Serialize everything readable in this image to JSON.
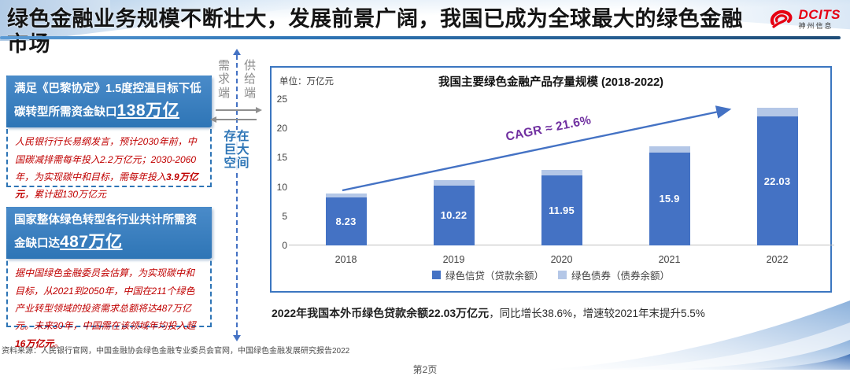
{
  "colors": {
    "accent_blue": "#2E75B6",
    "bar_credit_blue": "#4472C4",
    "bar_bond_lightblue": "#B4C7E7",
    "cagr_purple": "#7030A0",
    "body_text_red": "#C00000"
  },
  "header": {
    "title": "绿色金融业务规模不断壮大，发展前景广阔，我国已成为全球最大的绿色金融市场",
    "logo_brand": "DCITS",
    "logo_sub": "神州信息"
  },
  "left_panels": [
    {
      "headline_pre": "满足《巴黎协定》1.5度控温目标下低碳转型所需资金缺口",
      "headline_value": "138万亿",
      "body_pre": "人民银行行长易纲发言，预计2030年前，中国碳减排需每年投入2.2万亿元；2030-2060年，为实现碳中和目标，需每年投入",
      "body_bold": "3.9万亿元",
      "body_post": "，累计超130万亿元"
    },
    {
      "headline_pre": "国家整体绿色转型各行业共计所需资金缺口达",
      "headline_value": "487万亿",
      "body_pre": "据中国绿色金融委员会估算，为实现碳中和目标，从2021到2050年，中国在211个绿色产业转型领域的投资需求总额将达487万亿元。未来30年，中国需在该领域年均投入超",
      "body_bold": "16万亿元",
      "body_post": "。"
    }
  ],
  "divider": {
    "demand_label": "需求端",
    "supply_label": "供给端",
    "gap_rows": [
      "存在",
      "巨大",
      "空间"
    ]
  },
  "chart_data": {
    "type": "bar",
    "stacked": true,
    "title": "我国主要绿色金融产品存量规模 (2018-2022)",
    "unit_label": "单位：万亿元",
    "categories": [
      "2018",
      "2019",
      "2020",
      "2021",
      "2022"
    ],
    "series": [
      {
        "name": "绿色信贷（贷款余额）",
        "color": "#4472C4",
        "values": [
          8.23,
          10.22,
          11.95,
          15.9,
          22.03
        ],
        "labels": [
          "8.23",
          "10.22",
          "11.95",
          "15.9",
          "22.03"
        ]
      },
      {
        "name": "绿色债券（债券余额）",
        "color": "#B4C7E7",
        "values": [
          0.6,
          1.0,
          0.9,
          1.1,
          1.5
        ]
      }
    ],
    "ylim": [
      0,
      25
    ],
    "yticks": [
      0,
      5,
      10,
      15,
      20,
      25
    ],
    "grid": false,
    "legend_position": "bottom",
    "annotation": {
      "text": "CAGR ≈ 21.6%",
      "color": "#7030A0"
    }
  },
  "caption": {
    "bold": "2022年我国本外币绿色贷款余额22.03万亿元",
    "regular": "，同比增长38.6%，增速较2021年末提升5.5%"
  },
  "footer": {
    "source": "资料来源：人民银行官网，中国金融协会绿色金融专业委员会官网，中国绿色金融发展研究报告2022",
    "page": "第2页"
  }
}
